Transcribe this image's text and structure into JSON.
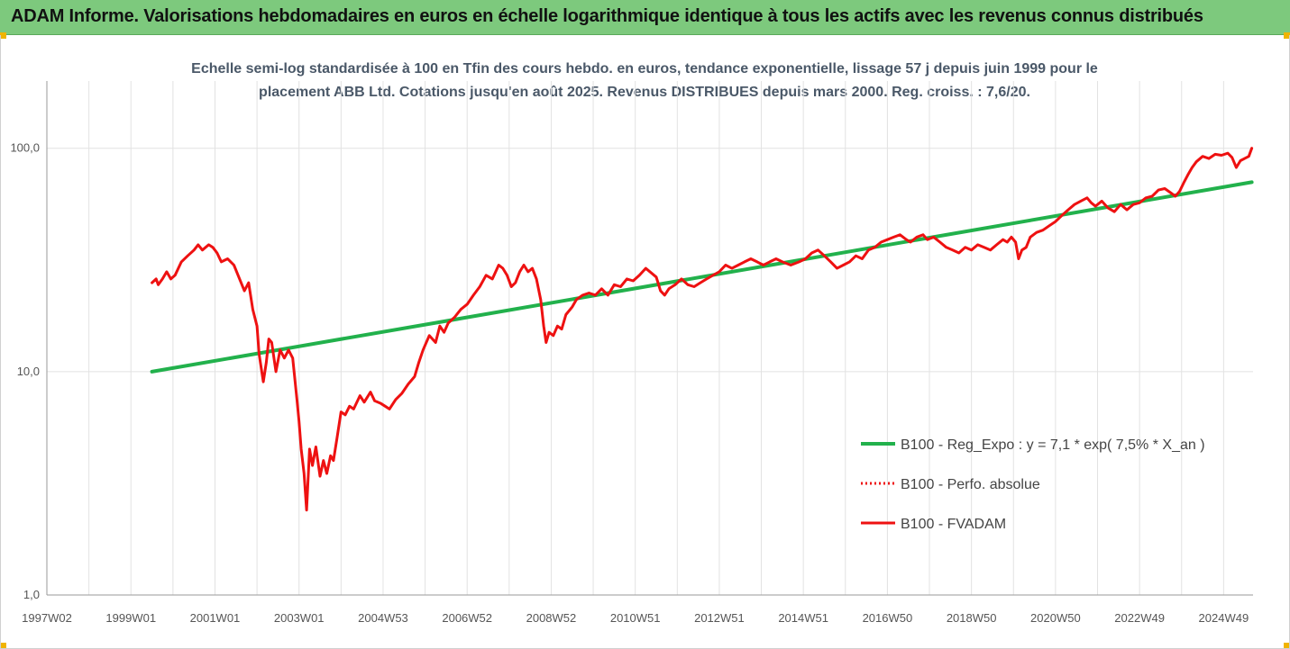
{
  "header": {
    "title": "ADAM Informe. Valorisations hebdomadaires en euros en échelle logarithmique identique à tous les actifs avec les revenus connus distribués"
  },
  "colors": {
    "header_bg": "#7dc97d",
    "trend": "#22b14c",
    "series": "#ee1111",
    "grid": "#e2e2e2",
    "subtitle": "#4a5868"
  },
  "chart_data": {
    "type": "line",
    "title": "Echelle semi-log standardisée à 100 en Tfin des cours hebdo. en euros, tendance exponentielle, lissage 57 j depuis juin 1999 pour le placement ABB Ltd. Cotations jusqu'en août 2025. Revenus DISTRIBUES depuis mars 2000. Reg. croiss. : 7,6/20.",
    "title_lines": [
      "Echelle semi-log standardisée à 100 en Tfin des cours hebdo. en euros, tendance exponentielle, lissage 57 j depuis juin 1999 pour le",
      "placement ABB Ltd. Cotations jusqu'en août 2025. Revenus DISTRIBUES depuis mars 2000. Reg. croiss. : 7,6/20."
    ],
    "y_scale": "log",
    "ylim": [
      1,
      200
    ],
    "y_ticks": [
      {
        "value": 1,
        "label": "1,0"
      },
      {
        "value": 10,
        "label": "10,0"
      },
      {
        "value": 100,
        "label": "100,0"
      }
    ],
    "xlim": [
      1997.0,
      2025.7
    ],
    "x_ticks": [
      {
        "value": 1997.0,
        "label": "1997W02"
      },
      {
        "value": 1999.0,
        "label": "1999W01"
      },
      {
        "value": 2001.0,
        "label": "2001W01"
      },
      {
        "value": 2003.0,
        "label": "2003W01"
      },
      {
        "value": 2005.0,
        "label": "2004W53"
      },
      {
        "value": 2007.0,
        "label": "2006W52"
      },
      {
        "value": 2009.0,
        "label": "2008W52"
      },
      {
        "value": 2011.0,
        "label": "2010W51"
      },
      {
        "value": 2013.0,
        "label": "2012W51"
      },
      {
        "value": 2015.0,
        "label": "2014W51"
      },
      {
        "value": 2017.0,
        "label": "2016W50"
      },
      {
        "value": 2019.0,
        "label": "2018W50"
      },
      {
        "value": 2021.0,
        "label": "2020W50"
      },
      {
        "value": 2023.0,
        "label": "2022W49"
      },
      {
        "value": 2025.0,
        "label": "2024W49"
      }
    ],
    "grid": true,
    "legend_position": "right",
    "series": [
      {
        "name": "B100 - Reg_Expo : y = 7,1 * exp( 7,5% *  X_an )",
        "style": "solid",
        "color": "#22b14c",
        "points": [
          [
            1999.5,
            10.0
          ],
          [
            2025.67,
            70.5
          ]
        ]
      },
      {
        "name": "B100 - Perfo. absolue",
        "style": "dotted",
        "color": "#ee1111",
        "points": []
      },
      {
        "name": "B100 - FVADAM",
        "style": "solid",
        "color": "#ee1111",
        "points": [
          [
            1999.5,
            25
          ],
          [
            1999.6,
            26
          ],
          [
            1999.65,
            24.5
          ],
          [
            1999.75,
            26
          ],
          [
            1999.85,
            28
          ],
          [
            1999.95,
            26
          ],
          [
            2000.05,
            27
          ],
          [
            2000.2,
            31
          ],
          [
            2000.35,
            33
          ],
          [
            2000.5,
            35
          ],
          [
            2000.6,
            37
          ],
          [
            2000.7,
            35
          ],
          [
            2000.85,
            37
          ],
          [
            2000.95,
            36
          ],
          [
            2001.05,
            34
          ],
          [
            2001.15,
            31
          ],
          [
            2001.3,
            32
          ],
          [
            2001.45,
            30
          ],
          [
            2001.55,
            27
          ],
          [
            2001.7,
            23
          ],
          [
            2001.8,
            25
          ],
          [
            2001.9,
            19
          ],
          [
            2002.0,
            16
          ],
          [
            2002.05,
            12
          ],
          [
            2002.15,
            9
          ],
          [
            2002.22,
            11
          ],
          [
            2002.28,
            14
          ],
          [
            2002.35,
            13.5
          ],
          [
            2002.45,
            10
          ],
          [
            2002.55,
            12.5
          ],
          [
            2002.65,
            11.5
          ],
          [
            2002.75,
            12.5
          ],
          [
            2002.85,
            11.5
          ],
          [
            2002.95,
            7.5
          ],
          [
            2003.0,
            6.0
          ],
          [
            2003.05,
            4.5
          ],
          [
            2003.12,
            3.5
          ],
          [
            2003.18,
            2.4
          ],
          [
            2003.25,
            4.5
          ],
          [
            2003.32,
            3.8
          ],
          [
            2003.4,
            4.6
          ],
          [
            2003.5,
            3.4
          ],
          [
            2003.58,
            4.0
          ],
          [
            2003.66,
            3.5
          ],
          [
            2003.75,
            4.2
          ],
          [
            2003.82,
            4.0
          ],
          [
            2003.9,
            5.0
          ],
          [
            2004.0,
            6.6
          ],
          [
            2004.1,
            6.4
          ],
          [
            2004.2,
            7.0
          ],
          [
            2004.3,
            6.8
          ],
          [
            2004.45,
            7.8
          ],
          [
            2004.55,
            7.3
          ],
          [
            2004.7,
            8.1
          ],
          [
            2004.8,
            7.4
          ],
          [
            2004.95,
            7.2
          ],
          [
            2005.05,
            7.0
          ],
          [
            2005.15,
            6.8
          ],
          [
            2005.3,
            7.5
          ],
          [
            2005.45,
            8.0
          ],
          [
            2005.6,
            8.8
          ],
          [
            2005.75,
            9.5
          ],
          [
            2005.85,
            11
          ],
          [
            2005.95,
            12.5
          ],
          [
            2006.1,
            14.5
          ],
          [
            2006.25,
            13.5
          ],
          [
            2006.35,
            16
          ],
          [
            2006.45,
            15
          ],
          [
            2006.55,
            16.5
          ],
          [
            2006.7,
            17.5
          ],
          [
            2006.85,
            19
          ],
          [
            2007.0,
            20
          ],
          [
            2007.15,
            22
          ],
          [
            2007.3,
            24
          ],
          [
            2007.45,
            27
          ],
          [
            2007.6,
            26
          ],
          [
            2007.75,
            30
          ],
          [
            2007.85,
            29
          ],
          [
            2007.95,
            27
          ],
          [
            2008.05,
            24
          ],
          [
            2008.15,
            25
          ],
          [
            2008.25,
            28
          ],
          [
            2008.35,
            30
          ],
          [
            2008.45,
            28
          ],
          [
            2008.55,
            29
          ],
          [
            2008.65,
            26
          ],
          [
            2008.75,
            21
          ],
          [
            2008.82,
            16
          ],
          [
            2008.88,
            13.5
          ],
          [
            2008.95,
            15
          ],
          [
            2009.05,
            14.5
          ],
          [
            2009.15,
            16
          ],
          [
            2009.25,
            15.5
          ],
          [
            2009.35,
            18
          ],
          [
            2009.5,
            19.5
          ],
          [
            2009.6,
            21
          ],
          [
            2009.75,
            22
          ],
          [
            2009.9,
            22.5
          ],
          [
            2010.05,
            22
          ],
          [
            2010.2,
            23.5
          ],
          [
            2010.35,
            22
          ],
          [
            2010.5,
            24.5
          ],
          [
            2010.65,
            24
          ],
          [
            2010.8,
            26
          ],
          [
            2010.95,
            25.5
          ],
          [
            2011.1,
            27
          ],
          [
            2011.25,
            29
          ],
          [
            2011.35,
            28
          ],
          [
            2011.5,
            26.5
          ],
          [
            2011.6,
            23
          ],
          [
            2011.7,
            22
          ],
          [
            2011.8,
            23.5
          ],
          [
            2011.95,
            24.5
          ],
          [
            2012.1,
            26
          ],
          [
            2012.25,
            24.5
          ],
          [
            2012.4,
            24
          ],
          [
            2012.55,
            25
          ],
          [
            2012.7,
            26
          ],
          [
            2012.85,
            27
          ],
          [
            2013.0,
            28
          ],
          [
            2013.15,
            30
          ],
          [
            2013.3,
            29
          ],
          [
            2013.45,
            30
          ],
          [
            2013.6,
            31
          ],
          [
            2013.75,
            32
          ],
          [
            2013.9,
            31
          ],
          [
            2014.05,
            30
          ],
          [
            2014.2,
            31
          ],
          [
            2014.35,
            32
          ],
          [
            2014.5,
            31
          ],
          [
            2014.7,
            30
          ],
          [
            2014.9,
            31
          ],
          [
            2015.05,
            32
          ],
          [
            2015.2,
            34
          ],
          [
            2015.35,
            35
          ],
          [
            2015.5,
            33
          ],
          [
            2015.65,
            31
          ],
          [
            2015.8,
            29
          ],
          [
            2015.95,
            30
          ],
          [
            2016.1,
            31
          ],
          [
            2016.25,
            33
          ],
          [
            2016.4,
            32
          ],
          [
            2016.55,
            35
          ],
          [
            2016.7,
            36
          ],
          [
            2016.85,
            38
          ],
          [
            2017.0,
            39
          ],
          [
            2017.15,
            40
          ],
          [
            2017.3,
            41
          ],
          [
            2017.45,
            39
          ],
          [
            2017.55,
            38
          ],
          [
            2017.7,
            40
          ],
          [
            2017.85,
            41
          ],
          [
            2017.95,
            39
          ],
          [
            2018.1,
            40
          ],
          [
            2018.25,
            38
          ],
          [
            2018.4,
            36
          ],
          [
            2018.55,
            35
          ],
          [
            2018.7,
            34
          ],
          [
            2018.85,
            36
          ],
          [
            2019.0,
            35
          ],
          [
            2019.15,
            37
          ],
          [
            2019.3,
            36
          ],
          [
            2019.45,
            35
          ],
          [
            2019.6,
            37
          ],
          [
            2019.75,
            39
          ],
          [
            2019.85,
            38
          ],
          [
            2019.95,
            40
          ],
          [
            2020.05,
            38
          ],
          [
            2020.12,
            32
          ],
          [
            2020.2,
            35
          ],
          [
            2020.3,
            36
          ],
          [
            2020.4,
            40
          ],
          [
            2020.55,
            42
          ],
          [
            2020.7,
            43
          ],
          [
            2020.85,
            45
          ],
          [
            2021.0,
            47
          ],
          [
            2021.15,
            50
          ],
          [
            2021.3,
            53
          ],
          [
            2021.45,
            56
          ],
          [
            2021.6,
            58
          ],
          [
            2021.75,
            60
          ],
          [
            2021.85,
            57
          ],
          [
            2021.95,
            55
          ],
          [
            2022.1,
            58
          ],
          [
            2022.25,
            54
          ],
          [
            2022.4,
            52
          ],
          [
            2022.55,
            56
          ],
          [
            2022.7,
            53
          ],
          [
            2022.85,
            56
          ],
          [
            2023.0,
            57
          ],
          [
            2023.15,
            60
          ],
          [
            2023.3,
            61
          ],
          [
            2023.45,
            65
          ],
          [
            2023.6,
            66
          ],
          [
            2023.75,
            63
          ],
          [
            2023.85,
            61
          ],
          [
            2023.95,
            64
          ],
          [
            2024.05,
            70
          ],
          [
            2024.15,
            76
          ],
          [
            2024.25,
            82
          ],
          [
            2024.35,
            87
          ],
          [
            2024.5,
            92
          ],
          [
            2024.65,
            90
          ],
          [
            2024.8,
            94
          ],
          [
            2024.95,
            93
          ],
          [
            2025.1,
            95
          ],
          [
            2025.2,
            91
          ],
          [
            2025.3,
            82
          ],
          [
            2025.4,
            88
          ],
          [
            2025.5,
            90
          ],
          [
            2025.6,
            92
          ],
          [
            2025.67,
            100
          ]
        ]
      }
    ]
  }
}
